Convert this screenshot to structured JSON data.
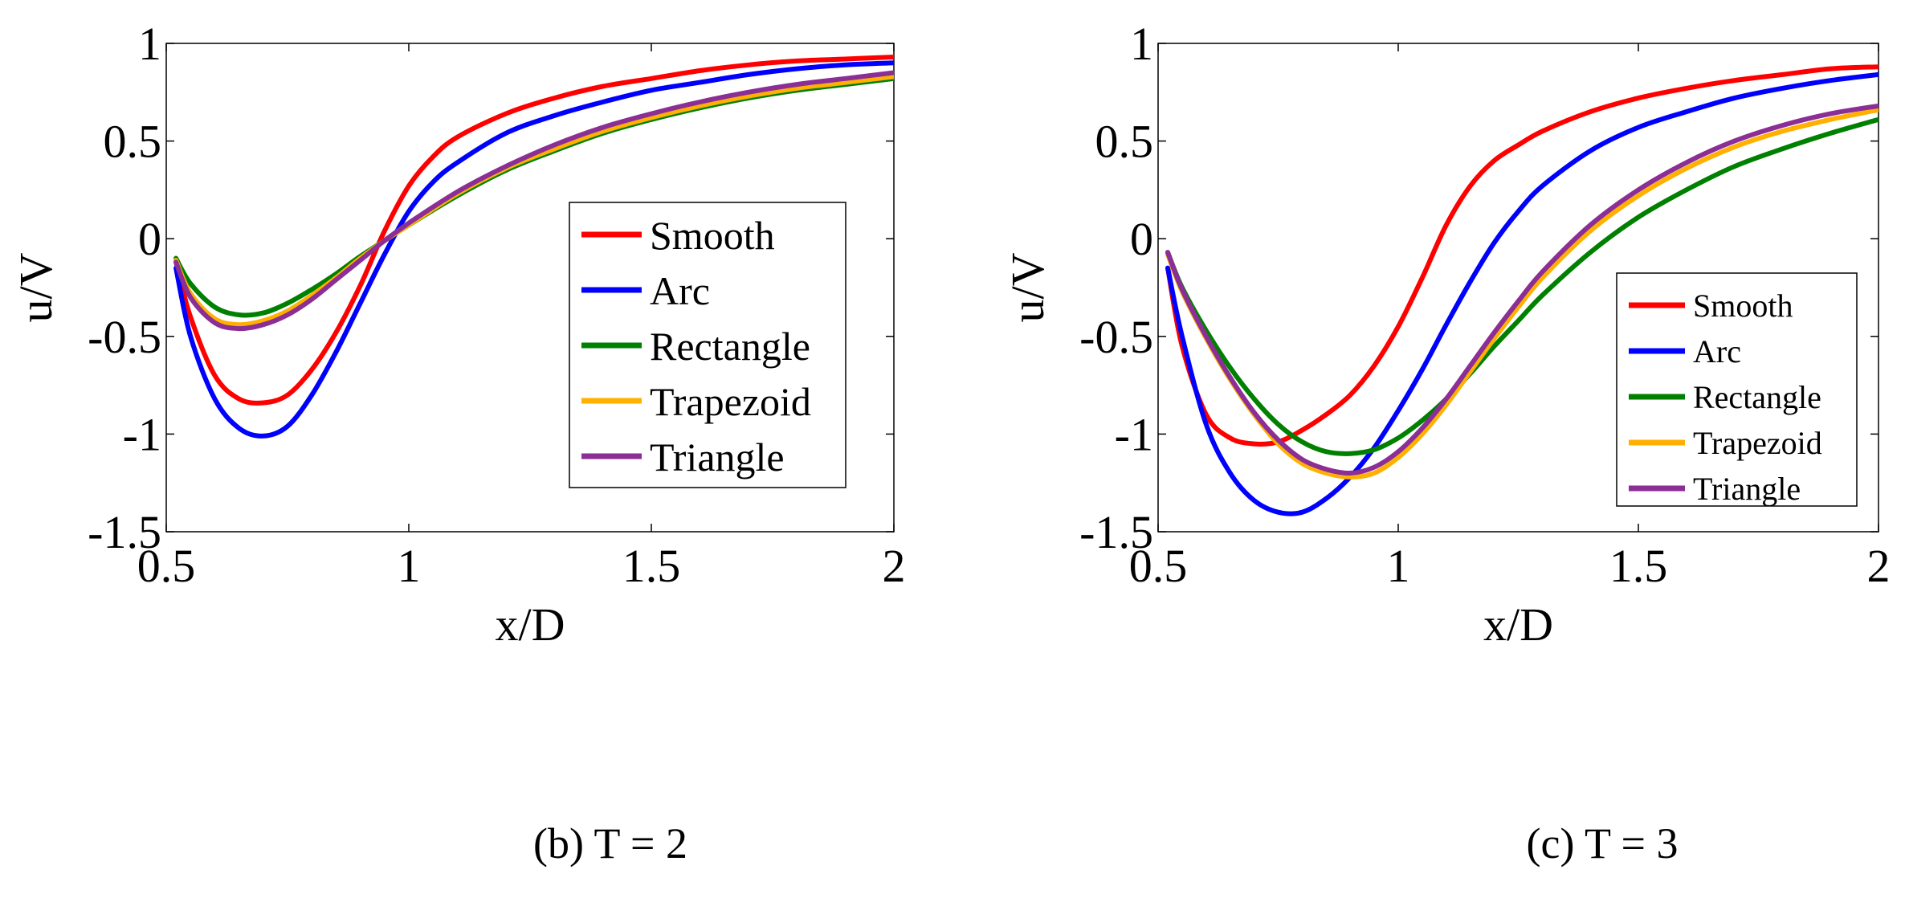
{
  "chart_data": [
    {
      "type": "line",
      "caption": "(b)   T = 2",
      "xlabel": "x/D",
      "ylabel": "u/V",
      "xlim": [
        0.5,
        2
      ],
      "ylim": [
        -1.5,
        1
      ],
      "xticks": [
        0.5,
        1,
        1.5,
        2
      ],
      "xtick_labels": [
        "0.5",
        "1",
        "1.5",
        "2"
      ],
      "yticks": [
        1,
        0.5,
        0,
        -0.5,
        -1,
        -1.5
      ],
      "ytick_labels": [
        "1",
        "0.5",
        "0",
        "-0.5",
        "-1",
        "-1.5"
      ],
      "grid": false,
      "legend_position": "center-right",
      "series": [
        {
          "name": "Smooth",
          "color": "#ff0000",
          "x": [
            0.52,
            0.55,
            0.6,
            0.65,
            0.7,
            0.75,
            0.8,
            0.85,
            0.9,
            0.95,
            1.0,
            1.05,
            1.1,
            1.2,
            1.3,
            1.4,
            1.5,
            1.6,
            1.7,
            1.8,
            1.9,
            2.0
          ],
          "y": [
            -0.12,
            -0.4,
            -0.7,
            -0.82,
            -0.84,
            -0.8,
            -0.67,
            -0.48,
            -0.24,
            0.04,
            0.27,
            0.42,
            0.52,
            0.64,
            0.72,
            0.78,
            0.82,
            0.86,
            0.89,
            0.91,
            0.92,
            0.93
          ]
        },
        {
          "name": "Arc",
          "color": "#0000ff",
          "x": [
            0.52,
            0.55,
            0.6,
            0.65,
            0.7,
            0.75,
            0.8,
            0.85,
            0.9,
            0.95,
            1.0,
            1.05,
            1.1,
            1.2,
            1.3,
            1.4,
            1.5,
            1.6,
            1.7,
            1.8,
            1.9,
            2.0
          ],
          "y": [
            -0.15,
            -0.5,
            -0.82,
            -0.97,
            -1.01,
            -0.96,
            -0.8,
            -0.58,
            -0.33,
            -0.08,
            0.14,
            0.29,
            0.39,
            0.54,
            0.63,
            0.7,
            0.76,
            0.8,
            0.84,
            0.87,
            0.89,
            0.9
          ]
        },
        {
          "name": "Rectangle",
          "color": "#008000",
          "x": [
            0.52,
            0.55,
            0.6,
            0.65,
            0.7,
            0.75,
            0.8,
            0.85,
            0.9,
            0.95,
            1.0,
            1.1,
            1.2,
            1.3,
            1.4,
            1.5,
            1.6,
            1.7,
            1.8,
            1.9,
            2.0
          ],
          "y": [
            -0.1,
            -0.23,
            -0.35,
            -0.39,
            -0.38,
            -0.33,
            -0.26,
            -0.18,
            -0.09,
            -0.01,
            0.07,
            0.22,
            0.35,
            0.45,
            0.54,
            0.61,
            0.67,
            0.72,
            0.76,
            0.79,
            0.82
          ]
        },
        {
          "name": "Trapezoid",
          "color": "#ffb000",
          "x": [
            0.52,
            0.55,
            0.6,
            0.65,
            0.7,
            0.75,
            0.8,
            0.85,
            0.9,
            0.95,
            1.0,
            1.1,
            1.2,
            1.3,
            1.4,
            1.5,
            1.6,
            1.7,
            1.8,
            1.9,
            2.0
          ],
          "y": [
            -0.11,
            -0.28,
            -0.41,
            -0.44,
            -0.42,
            -0.37,
            -0.29,
            -0.2,
            -0.1,
            -0.01,
            0.07,
            0.23,
            0.36,
            0.46,
            0.55,
            0.62,
            0.68,
            0.73,
            0.77,
            0.8,
            0.83
          ]
        },
        {
          "name": "Triangle",
          "color": "#8b2e96",
          "x": [
            0.52,
            0.55,
            0.6,
            0.65,
            0.7,
            0.75,
            0.8,
            0.85,
            0.9,
            0.95,
            1.0,
            1.1,
            1.2,
            1.3,
            1.4,
            1.5,
            1.6,
            1.7,
            1.8,
            1.9,
            2.0
          ],
          "y": [
            -0.12,
            -0.3,
            -0.43,
            -0.46,
            -0.44,
            -0.39,
            -0.31,
            -0.21,
            -0.11,
            -0.01,
            0.08,
            0.24,
            0.37,
            0.48,
            0.57,
            0.64,
            0.7,
            0.75,
            0.79,
            0.82,
            0.85
          ]
        }
      ]
    },
    {
      "type": "line",
      "caption": "(c)   T = 3",
      "xlabel": "x/D",
      "ylabel": "u/V",
      "xlim": [
        0.5,
        2
      ],
      "ylim": [
        -1.5,
        1
      ],
      "xticks": [
        0.5,
        1,
        1.5,
        2
      ],
      "xtick_labels": [
        "0.5",
        "1",
        "1.5",
        "2"
      ],
      "yticks": [
        1,
        0.5,
        0,
        -0.5,
        -1,
        -1.5
      ],
      "ytick_labels": [
        "1",
        "0.5",
        "0",
        "-0.5",
        "-1",
        "-1.5"
      ],
      "grid": false,
      "legend_position": "lower-right",
      "series": [
        {
          "name": "Smooth",
          "color": "#ff0000",
          "x": [
            0.52,
            0.55,
            0.6,
            0.65,
            0.7,
            0.75,
            0.8,
            0.85,
            0.9,
            0.95,
            1.0,
            1.05,
            1.1,
            1.15,
            1.2,
            1.25,
            1.3,
            1.4,
            1.5,
            1.6,
            1.7,
            1.8,
            1.9,
            2.0
          ],
          "y": [
            -0.15,
            -0.55,
            -0.9,
            -1.02,
            -1.05,
            -1.04,
            -0.98,
            -0.9,
            -0.8,
            -0.65,
            -0.45,
            -0.2,
            0.07,
            0.27,
            0.4,
            0.48,
            0.55,
            0.65,
            0.72,
            0.77,
            0.81,
            0.84,
            0.87,
            0.88
          ]
        },
        {
          "name": "Arc",
          "color": "#0000ff",
          "x": [
            0.52,
            0.55,
            0.6,
            0.65,
            0.7,
            0.75,
            0.8,
            0.85,
            0.9,
            0.95,
            1.0,
            1.05,
            1.1,
            1.15,
            1.2,
            1.25,
            1.3,
            1.4,
            1.5,
            1.6,
            1.7,
            1.8,
            1.9,
            2.0
          ],
          "y": [
            -0.15,
            -0.5,
            -0.95,
            -1.2,
            -1.34,
            -1.4,
            -1.4,
            -1.33,
            -1.22,
            -1.07,
            -0.88,
            -0.67,
            -0.44,
            -0.22,
            -0.02,
            0.14,
            0.27,
            0.45,
            0.57,
            0.65,
            0.72,
            0.77,
            0.81,
            0.84
          ]
        },
        {
          "name": "Rectangle",
          "color": "#008000",
          "x": [
            0.52,
            0.55,
            0.6,
            0.65,
            0.7,
            0.75,
            0.8,
            0.85,
            0.9,
            0.95,
            1.0,
            1.05,
            1.1,
            1.15,
            1.2,
            1.25,
            1.3,
            1.4,
            1.5,
            1.6,
            1.7,
            1.8,
            1.9,
            2.0
          ],
          "y": [
            -0.07,
            -0.25,
            -0.47,
            -0.66,
            -0.82,
            -0.95,
            -1.04,
            -1.09,
            -1.1,
            -1.08,
            -1.02,
            -0.93,
            -0.82,
            -0.69,
            -0.55,
            -0.42,
            -0.29,
            -0.07,
            0.11,
            0.25,
            0.37,
            0.46,
            0.54,
            0.61
          ]
        },
        {
          "name": "Trapezoid",
          "color": "#ffb000",
          "x": [
            0.52,
            0.55,
            0.6,
            0.65,
            0.7,
            0.75,
            0.8,
            0.85,
            0.9,
            0.95,
            1.0,
            1.05,
            1.1,
            1.15,
            1.2,
            1.25,
            1.3,
            1.4,
            1.5,
            1.6,
            1.7,
            1.8,
            1.9,
            2.0
          ],
          "y": [
            -0.08,
            -0.27,
            -0.51,
            -0.72,
            -0.9,
            -1.05,
            -1.15,
            -1.2,
            -1.22,
            -1.2,
            -1.12,
            -1.0,
            -0.85,
            -0.68,
            -0.51,
            -0.35,
            -0.2,
            0.04,
            0.22,
            0.36,
            0.47,
            0.55,
            0.61,
            0.66
          ]
        },
        {
          "name": "Triangle",
          "color": "#8b2e96",
          "x": [
            0.52,
            0.55,
            0.6,
            0.65,
            0.7,
            0.75,
            0.8,
            0.85,
            0.9,
            0.95,
            1.0,
            1.05,
            1.1,
            1.15,
            1.2,
            1.25,
            1.3,
            1.4,
            1.5,
            1.6,
            1.7,
            1.8,
            1.9,
            2.0
          ],
          "y": [
            -0.07,
            -0.26,
            -0.5,
            -0.71,
            -0.89,
            -1.03,
            -1.13,
            -1.18,
            -1.2,
            -1.17,
            -1.09,
            -0.97,
            -0.82,
            -0.65,
            -0.48,
            -0.32,
            -0.17,
            0.07,
            0.25,
            0.39,
            0.5,
            0.58,
            0.64,
            0.68
          ]
        }
      ]
    }
  ]
}
